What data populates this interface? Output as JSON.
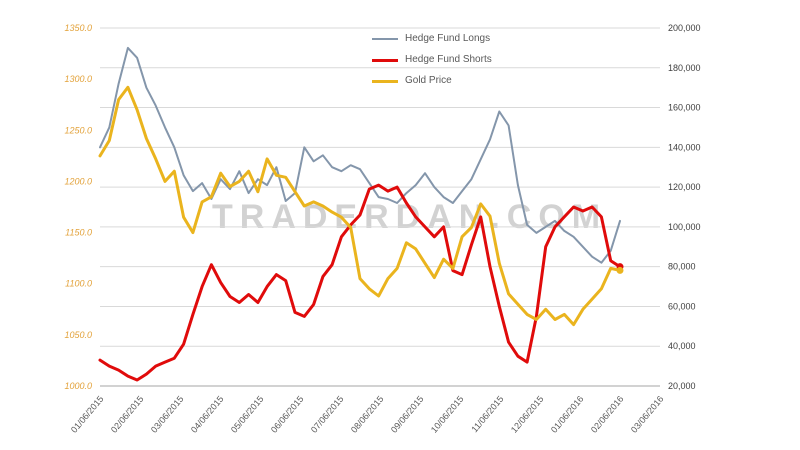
{
  "chart_data": {
    "type": "line",
    "title": "",
    "watermark": "TRADERDAN.COM",
    "legend_position": "top-center",
    "grid": "horizontal",
    "x_unit": "weekly points, Jan 2015 - Feb 2016",
    "x_tick_labels": [
      "01/06/2015",
      "02/06/2015",
      "03/06/2015",
      "04/06/2015",
      "05/06/2015",
      "06/06/2015",
      "07/06/2015",
      "08/06/2015",
      "09/06/2015",
      "10/06/2015",
      "11/06/2015",
      "12/06/2015",
      "01/06/2016",
      "02/06/2016",
      "03/06/2016"
    ],
    "left_axis": {
      "title": "",
      "min": 1000,
      "max": 1350,
      "step": 50,
      "labels": [
        "1350.0",
        "1300.0",
        "1250.0",
        "1200.0",
        "1150.0",
        "1100.0",
        "1050.0",
        "1000.0"
      ],
      "label_color": "#e3a33c"
    },
    "right_axis": {
      "title": "",
      "min": 20000,
      "max": 200000,
      "step": 20000,
      "labels": [
        "200,000",
        "180,000",
        "160,000",
        "140,000",
        "120,000",
        "100,000",
        "80,000",
        "60,000",
        "40,000",
        "20,000"
      ],
      "label_color": "#404040"
    },
    "series": [
      {
        "name": "Hedge Fund Longs",
        "axis": "right",
        "color": "#8496ab",
        "width": 2,
        "end_marker": false,
        "values": [
          140000,
          150000,
          172000,
          190000,
          185000,
          170000,
          161000,
          150000,
          140000,
          126000,
          118000,
          122000,
          114000,
          124000,
          119000,
          128000,
          117000,
          124000,
          121000,
          130000,
          113000,
          117000,
          140000,
          133000,
          136000,
          130000,
          128000,
          131000,
          129000,
          122000,
          115000,
          114000,
          112000,
          117000,
          121000,
          127000,
          120000,
          115000,
          112000,
          118000,
          124000,
          134000,
          144000,
          158000,
          151000,
          121000,
          101000,
          97000,
          100000,
          103000,
          98000,
          95000,
          90000,
          85000,
          82000,
          88000,
          103000
        ]
      },
      {
        "name": "Hedge Fund Shorts",
        "axis": "right",
        "color": "#e00b0b",
        "width": 3,
        "end_marker": true,
        "values": [
          33000,
          30000,
          28000,
          25000,
          23000,
          26000,
          30000,
          32000,
          34000,
          41000,
          56000,
          70000,
          81000,
          72000,
          65000,
          62000,
          66000,
          62000,
          70000,
          76000,
          73000,
          57000,
          55000,
          61000,
          75000,
          81000,
          95000,
          101000,
          106000,
          119000,
          121000,
          118000,
          120000,
          112000,
          105000,
          100000,
          95000,
          100000,
          78000,
          76000,
          91000,
          105000,
          80000,
          60000,
          42000,
          35000,
          32000,
          55000,
          90000,
          100000,
          105000,
          110000,
          108000,
          110000,
          105000,
          83000,
          80000
        ]
      },
      {
        "name": "Gold Price",
        "axis": "left",
        "color": "#eab41e",
        "width": 3,
        "end_marker": true,
        "values": [
          1225,
          1240,
          1280,
          1292,
          1270,
          1242,
          1222,
          1200,
          1210,
          1165,
          1150,
          1180,
          1185,
          1208,
          1195,
          1200,
          1210,
          1190,
          1222,
          1206,
          1204,
          1190,
          1176,
          1180,
          1176,
          1170,
          1165,
          1155,
          1105,
          1095,
          1088,
          1105,
          1115,
          1140,
          1134,
          1120,
          1106,
          1124,
          1115,
          1146,
          1155,
          1178,
          1166,
          1120,
          1090,
          1080,
          1070,
          1065,
          1075,
          1065,
          1070,
          1060,
          1075,
          1085,
          1095,
          1115,
          1113
        ]
      }
    ],
    "style": {
      "gridline_color": "#d9d9d9",
      "axis_line_color": "#a6a6a6",
      "x_label_color": "#595959",
      "font_size_axis": 9
    }
  }
}
